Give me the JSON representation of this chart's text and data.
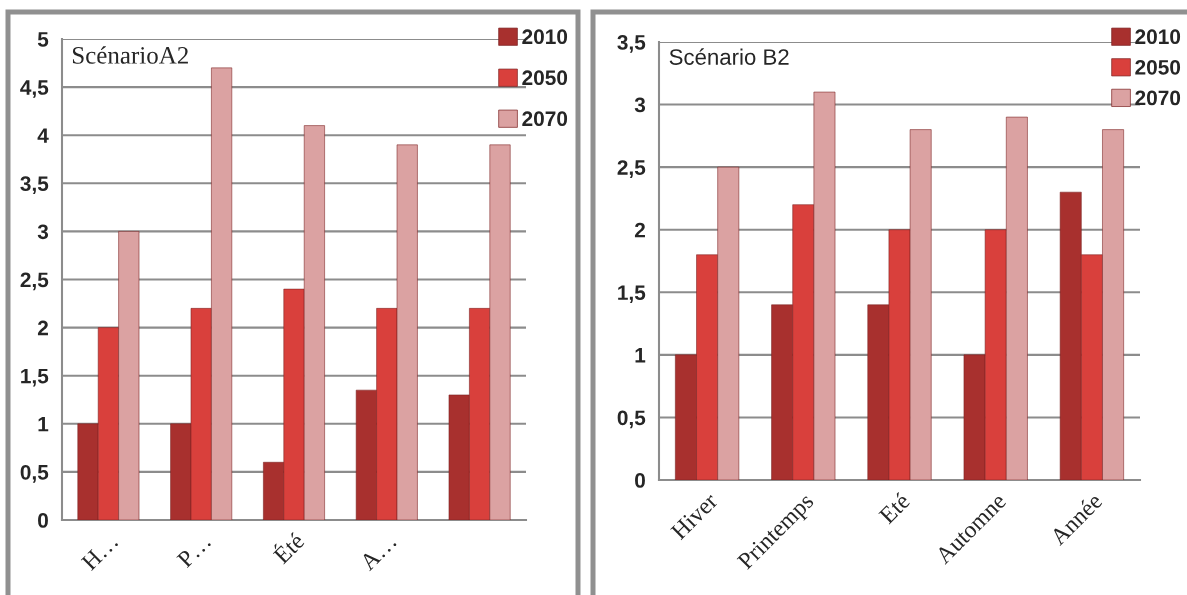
{
  "chart_data": [
    {
      "type": "bar",
      "title": "ScénarioA2",
      "categories": [
        "H…",
        "P…",
        "Été",
        "A…",
        null
      ],
      "series": [
        {
          "name": "2010",
          "color": "#a8302e",
          "values": [
            1,
            1,
            0.6,
            1.35,
            1.3
          ]
        },
        {
          "name": "2050",
          "color": "#d9403c",
          "values": [
            2,
            2.2,
            2.4,
            2.2,
            2.2
          ]
        },
        {
          "name": "2070",
          "color": "#dba2a2",
          "values": [
            3,
            4.7,
            4.1,
            3.9,
            3.9
          ]
        }
      ],
      "ylim": [
        0,
        5
      ],
      "yticks": [
        0,
        {
          "value": 0.5,
          "label": "0,5"
        },
        1,
        {
          "value": 1.5,
          "label": "1,5"
        },
        2,
        {
          "value": 2.5,
          "label": "2,5"
        },
        3,
        {
          "value": 3.5,
          "label": "3,5"
        },
        4,
        {
          "value": 4.5,
          "label": "4,5"
        },
        5
      ],
      "grid": "y",
      "legend": "top right"
    },
    {
      "type": "bar",
      "title": "Scénario B2",
      "categories": [
        "Hiver",
        "Printemps",
        "Eté",
        "Automne",
        "Année"
      ],
      "series": [
        {
          "name": "2010",
          "color": "#a8302e",
          "values": [
            1,
            1.4,
            1.4,
            1,
            2.3
          ]
        },
        {
          "name": "2050",
          "color": "#d9403c",
          "values": [
            1.8,
            2.2,
            2,
            2,
            1.8
          ]
        },
        {
          "name": "2070",
          "color": "#dba2a2",
          "values": [
            2.5,
            3.1,
            2.8,
            2.9,
            2.8
          ]
        }
      ],
      "ylim": [
        0,
        3.5
      ],
      "yticks": [
        0,
        {
          "value": 0.5,
          "label": "0,5"
        },
        1,
        {
          "value": 1.5,
          "label": "1,5"
        },
        2,
        {
          "value": 2.5,
          "label": "2,5"
        },
        3,
        {
          "value": 3.5,
          "label": "3,5"
        }
      ],
      "grid": "y",
      "legend": "top right"
    }
  ]
}
